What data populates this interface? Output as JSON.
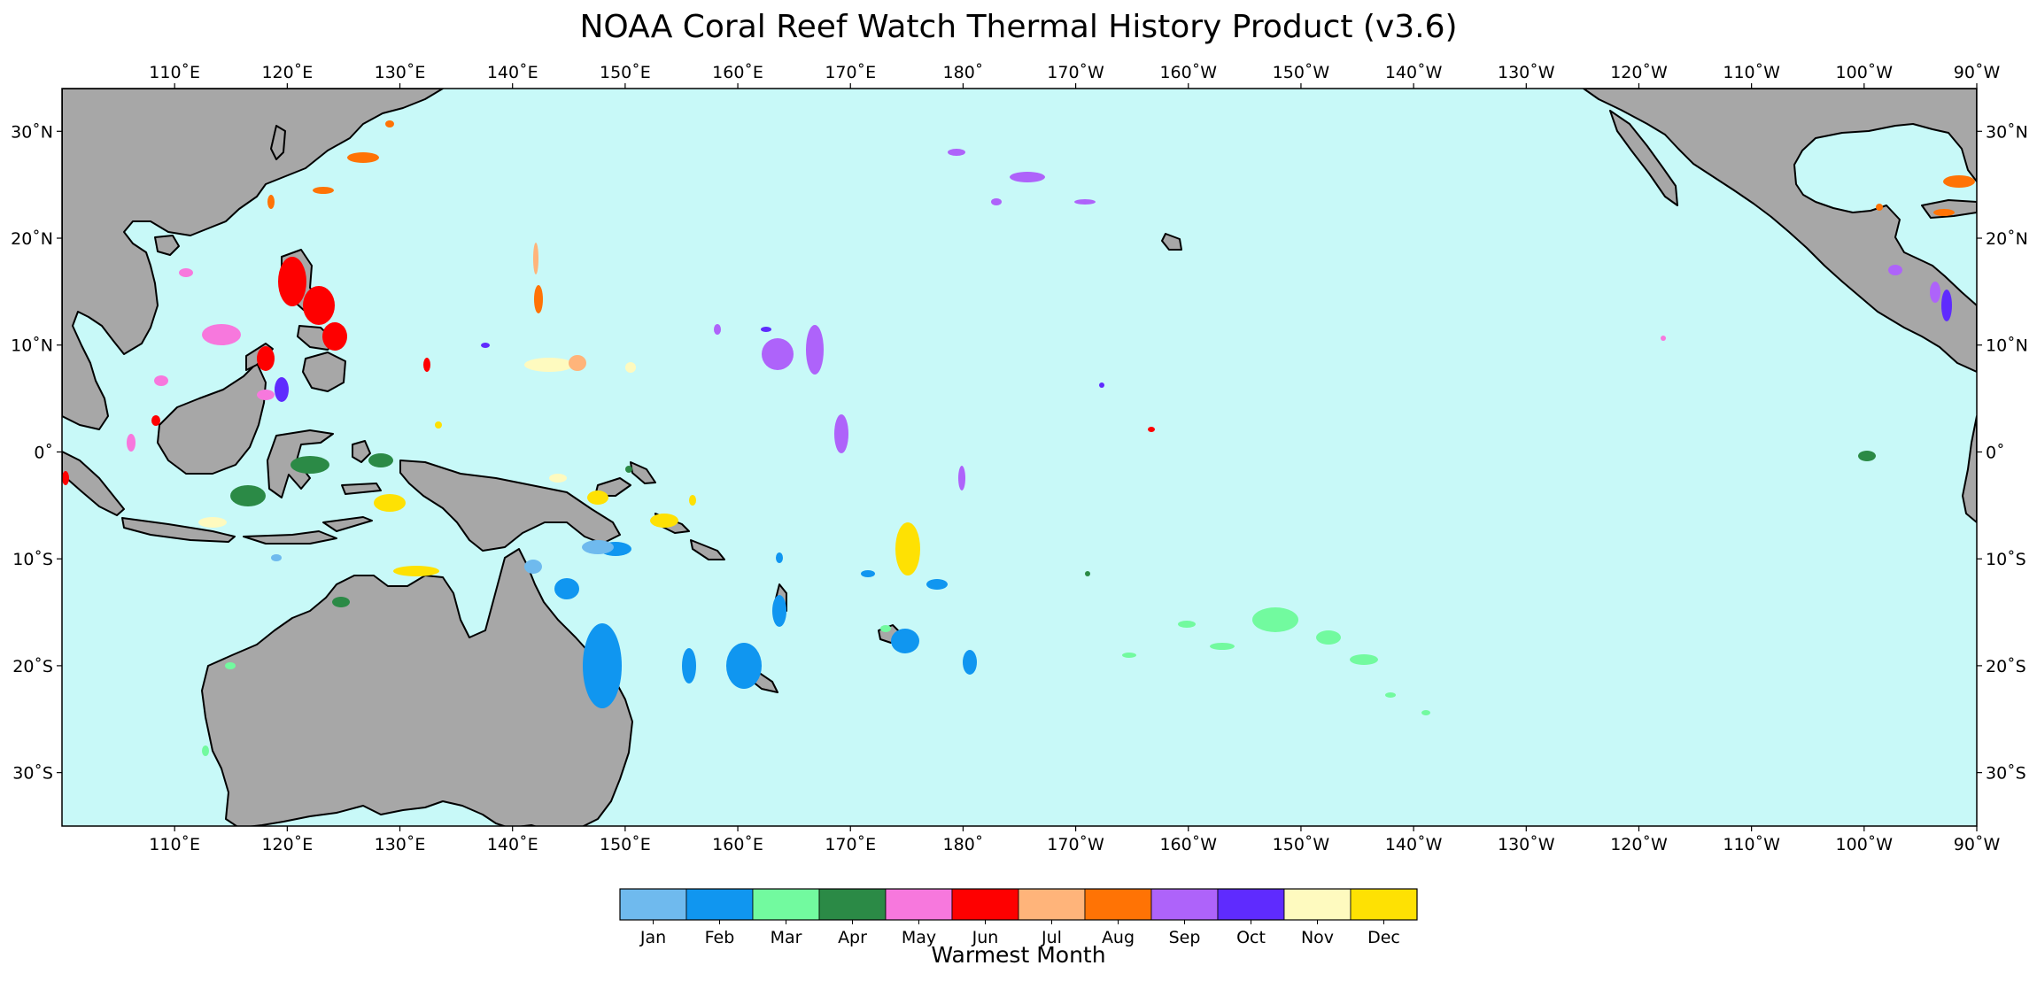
{
  "title": "NOAA Coral Reef Watch Thermal History Product (v3.6)",
  "map": {
    "lon_range": [
      100,
      270
    ],
    "lat_range": [
      -35,
      34
    ],
    "ocean_color": "#c8f9f8",
    "land_color": "#a7a7a7",
    "coast_color": "#000000",
    "lon_ticks": [
      {
        "lon": 110,
        "label": "110˚E"
      },
      {
        "lon": 120,
        "label": "120˚E"
      },
      {
        "lon": 130,
        "label": "130˚E"
      },
      {
        "lon": 140,
        "label": "140˚E"
      },
      {
        "lon": 150,
        "label": "150˚E"
      },
      {
        "lon": 160,
        "label": "160˚E"
      },
      {
        "lon": 170,
        "label": "170˚E"
      },
      {
        "lon": 180,
        "label": "180˚"
      },
      {
        "lon": 190,
        "label": "170˚W"
      },
      {
        "lon": 200,
        "label": "160˚W"
      },
      {
        "lon": 210,
        "label": "150˚W"
      },
      {
        "lon": 220,
        "label": "140˚W"
      },
      {
        "lon": 230,
        "label": "130˚W"
      },
      {
        "lon": 240,
        "label": "120˚W"
      },
      {
        "lon": 250,
        "label": "110˚W"
      },
      {
        "lon": 260,
        "label": "100˚W"
      },
      {
        "lon": 270,
        "label": "90˚W"
      }
    ],
    "lat_ticks": [
      {
        "lat": 30,
        "label": "30˚N"
      },
      {
        "lat": 20,
        "label": "20˚N"
      },
      {
        "lat": 10,
        "label": "10˚N"
      },
      {
        "lat": 0,
        "label": "0˚"
      },
      {
        "lat": -10,
        "label": "10˚S"
      },
      {
        "lat": -20,
        "label": "20˚S"
      },
      {
        "lat": -30,
        "label": "30˚S"
      }
    ]
  },
  "colorbar": {
    "label": "Warmest Month",
    "months": [
      {
        "label": "Jan",
        "color": "#6fbaee"
      },
      {
        "label": "Feb",
        "color": "#1096f0"
      },
      {
        "label": "Mar",
        "color": "#72fa9f"
      },
      {
        "label": "Apr",
        "color": "#2b8a46"
      },
      {
        "label": "May",
        "color": "#f778dd"
      },
      {
        "label": "Jun",
        "color": "#fe0000"
      },
      {
        "label": "Jul",
        "color": "#ffb47a"
      },
      {
        "label": "Aug",
        "color": "#ff7305"
      },
      {
        "label": "Sep",
        "color": "#ae63fa"
      },
      {
        "label": "Oct",
        "color": "#5f2bfe"
      },
      {
        "label": "Nov",
        "color": "#fefabf"
      },
      {
        "label": "Dec",
        "color": "#fee103"
      }
    ]
  }
}
